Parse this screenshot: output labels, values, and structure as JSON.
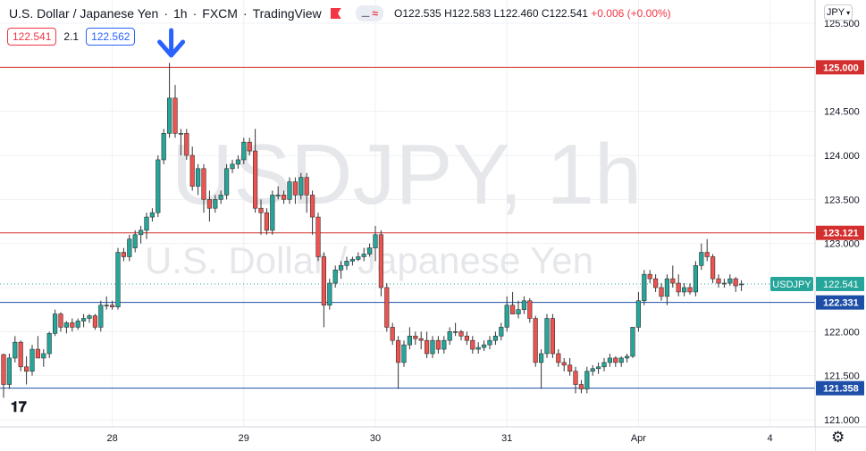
{
  "header": {
    "symbol_name": "U.S. Dollar / Japanese Yen",
    "interval": "1h",
    "exchange": "FXCM",
    "source": "TradingView",
    "ohlc": {
      "open": "O122.535",
      "high": "H122.583",
      "low": "L122.460",
      "close": "C122.541",
      "change": "+0.006 (+0.00%)"
    }
  },
  "trade": {
    "sell_price": "122.541",
    "spread": "2.1",
    "buy_price": "122.562"
  },
  "currency_selector": "JPY",
  "watermark": {
    "ticker": "USDJPY, 1h",
    "name": "U.S. Dollar / Japanese Yen"
  },
  "price_label": {
    "symbol": "USDJPY",
    "value": "122.541"
  },
  "colors": {
    "up": "#26a69a",
    "down": "#ef5350",
    "resistance": "#d32f2f",
    "support": "#1e4fa8",
    "arrow": "#2962ff",
    "background": "#ffffff",
    "grid": "#eef0f3"
  },
  "icons": {
    "arrow": "arrow-down-icon",
    "settings": "gear-icon",
    "logo": "tradingview-logo-icon",
    "flag": "flag-icon"
  },
  "chart_data": {
    "type": "candlestick",
    "title": "U.S. Dollar / Japanese Yen · 1h · FXCM",
    "y_axis": {
      "ticks": [
        "125.500",
        "125.000",
        "124.500",
        "124.000",
        "123.500",
        "123.000",
        "122.500",
        "122.000",
        "121.500",
        "121.000"
      ],
      "range": [
        121.0,
        125.5
      ],
      "position": "right"
    },
    "x_axis": {
      "ticks": [
        {
          "label": "28",
          "index": 19
        },
        {
          "label": "29",
          "index": 42
        },
        {
          "label": "30",
          "index": 65
        },
        {
          "label": "31",
          "index": 88
        },
        {
          "label": "Apr",
          "index": 111
        },
        {
          "label": "4",
          "index": 134
        }
      ],
      "range": [
        -1,
        148
      ]
    },
    "horizontal_lines": [
      {
        "value": 125.0,
        "label": "125.000",
        "kind": "resistance"
      },
      {
        "value": 123.121,
        "label": "123.121",
        "kind": "resistance"
      },
      {
        "value": 122.331,
        "label": "122.331",
        "kind": "support"
      },
      {
        "value": 121.358,
        "label": "121.358",
        "kind": "support"
      }
    ],
    "current_price": 122.541,
    "annotation": {
      "type": "arrow-down",
      "at_index": 29,
      "near_value": 125.1
    },
    "ohlc": [
      [
        121.74,
        121.75,
        121.25,
        121.4
      ],
      [
        121.4,
        121.75,
        121.35,
        121.7
      ],
      [
        121.7,
        121.95,
        121.65,
        121.88
      ],
      [
        121.88,
        121.9,
        121.55,
        121.6
      ],
      [
        121.6,
        121.72,
        121.4,
        121.55
      ],
      [
        121.55,
        121.85,
        121.5,
        121.8
      ],
      [
        121.8,
        121.95,
        121.7,
        121.7
      ],
      [
        121.7,
        121.8,
        121.6,
        121.75
      ],
      [
        121.75,
        122.0,
        121.7,
        121.98
      ],
      [
        121.98,
        122.25,
        121.95,
        122.2
      ],
      [
        122.2,
        122.22,
        122.0,
        122.05
      ],
      [
        122.05,
        122.12,
        121.98,
        122.1
      ],
      [
        122.1,
        122.15,
        122.0,
        122.05
      ],
      [
        122.05,
        122.15,
        122.02,
        122.12
      ],
      [
        122.12,
        122.2,
        122.05,
        122.15
      ],
      [
        122.15,
        122.2,
        122.1,
        122.18
      ],
      [
        122.18,
        122.2,
        122.02,
        122.05
      ],
      [
        122.05,
        122.35,
        122.0,
        122.3
      ],
      [
        122.3,
        122.4,
        122.25,
        122.3
      ],
      [
        122.3,
        122.35,
        122.25,
        122.28
      ],
      [
        122.28,
        122.95,
        122.25,
        122.9
      ],
      [
        122.9,
        122.95,
        122.8,
        122.85
      ],
      [
        122.85,
        123.1,
        122.8,
        123.05
      ],
      [
        122.95,
        123.15,
        122.9,
        123.1
      ],
      [
        123.1,
        123.2,
        123.0,
        123.15
      ],
      [
        123.15,
        123.35,
        123.05,
        123.3
      ],
      [
        123.3,
        123.4,
        123.25,
        123.35
      ],
      [
        123.35,
        124.0,
        123.3,
        123.95
      ],
      [
        123.95,
        124.3,
        123.9,
        124.25
      ],
      [
        124.25,
        125.05,
        124.2,
        124.65
      ],
      [
        124.65,
        124.8,
        124.2,
        124.25
      ],
      [
        124.25,
        124.3,
        124.0,
        124.25
      ],
      [
        124.25,
        124.3,
        123.95,
        124.0
      ],
      [
        124.0,
        124.1,
        123.6,
        123.65
      ],
      [
        123.65,
        123.9,
        123.55,
        123.85
      ],
      [
        123.85,
        123.9,
        123.35,
        123.5
      ],
      [
        123.5,
        123.6,
        123.25,
        123.4
      ],
      [
        123.4,
        123.55,
        123.35,
        123.5
      ],
      [
        123.5,
        123.6,
        123.45,
        123.55
      ],
      [
        123.55,
        123.9,
        123.5,
        123.85
      ],
      [
        123.85,
        123.95,
        123.8,
        123.9
      ],
      [
        123.9,
        124.0,
        123.85,
        123.95
      ],
      [
        123.95,
        124.2,
        123.9,
        124.15
      ],
      [
        124.15,
        124.2,
        124.0,
        124.05
      ],
      [
        124.05,
        124.3,
        123.35,
        123.4
      ],
      [
        123.4,
        123.5,
        123.1,
        123.35
      ],
      [
        123.35,
        123.4,
        123.1,
        123.15
      ],
      [
        123.15,
        123.6,
        123.1,
        123.55
      ],
      [
        123.55,
        123.65,
        123.5,
        123.55
      ],
      [
        123.55,
        123.6,
        123.45,
        123.5
      ],
      [
        123.5,
        123.75,
        123.45,
        123.7
      ],
      [
        123.7,
        123.75,
        123.45,
        123.55
      ],
      [
        123.55,
        123.8,
        123.5,
        123.75
      ],
      [
        123.75,
        123.8,
        123.35,
        123.55
      ],
      [
        123.55,
        123.6,
        123.1,
        123.3
      ],
      [
        123.3,
        123.35,
        122.8,
        122.85
      ],
      [
        122.85,
        122.9,
        122.05,
        122.3
      ],
      [
        122.3,
        122.6,
        122.25,
        122.55
      ],
      [
        122.55,
        122.75,
        122.5,
        122.7
      ],
      [
        122.7,
        122.8,
        122.6,
        122.75
      ],
      [
        122.75,
        122.85,
        122.7,
        122.8
      ],
      [
        122.8,
        122.85,
        122.75,
        122.82
      ],
      [
        122.82,
        122.9,
        122.8,
        122.85
      ],
      [
        122.85,
        122.95,
        122.8,
        122.88
      ],
      [
        122.88,
        123.0,
        122.85,
        122.95
      ],
      [
        122.95,
        123.2,
        122.8,
        123.1
      ],
      [
        123.1,
        123.15,
        122.4,
        122.5
      ],
      [
        122.5,
        122.55,
        122.0,
        122.05
      ],
      [
        122.05,
        122.1,
        121.85,
        121.9
      ],
      [
        121.9,
        121.95,
        121.35,
        121.65
      ],
      [
        121.65,
        121.9,
        121.6,
        121.85
      ],
      [
        121.85,
        122.05,
        121.8,
        121.95
      ],
      [
        121.95,
        122.0,
        121.85,
        121.92
      ],
      [
        121.92,
        122.0,
        121.8,
        121.9
      ],
      [
        121.9,
        122.0,
        121.7,
        121.75
      ],
      [
        121.75,
        121.95,
        121.7,
        121.9
      ],
      [
        121.9,
        121.95,
        121.75,
        121.8
      ],
      [
        121.8,
        121.95,
        121.75,
        121.9
      ],
      [
        121.9,
        122.05,
        121.85,
        122.0
      ],
      [
        122.0,
        122.1,
        121.95,
        122.0
      ],
      [
        122.0,
        122.02,
        121.9,
        121.95
      ],
      [
        121.95,
        122.0,
        121.85,
        121.9
      ],
      [
        121.9,
        121.95,
        121.75,
        121.8
      ],
      [
        121.8,
        121.88,
        121.75,
        121.82
      ],
      [
        121.82,
        121.9,
        121.78,
        121.85
      ],
      [
        121.85,
        121.95,
        121.8,
        121.9
      ],
      [
        121.9,
        122.0,
        121.85,
        121.95
      ],
      [
        121.95,
        122.1,
        121.9,
        122.05
      ],
      [
        122.05,
        122.4,
        122.0,
        122.3
      ],
      [
        122.3,
        122.45,
        122.2,
        122.2
      ],
      [
        122.2,
        122.35,
        122.15,
        122.25
      ],
      [
        122.25,
        122.4,
        122.2,
        122.35
      ],
      [
        122.35,
        122.38,
        122.1,
        122.15
      ],
      [
        122.15,
        122.18,
        121.6,
        121.65
      ],
      [
        121.65,
        121.8,
        121.35,
        121.75
      ],
      [
        121.75,
        122.2,
        121.7,
        122.15
      ],
      [
        122.15,
        122.2,
        121.7,
        121.75
      ],
      [
        121.75,
        121.8,
        121.6,
        121.65
      ],
      [
        121.65,
        121.7,
        121.55,
        121.62
      ],
      [
        121.62,
        121.7,
        121.5,
        121.55
      ],
      [
        121.55,
        121.6,
        121.3,
        121.4
      ],
      [
        121.4,
        121.45,
        121.3,
        121.35
      ],
      [
        121.35,
        121.6,
        121.3,
        121.55
      ],
      [
        121.55,
        121.62,
        121.5,
        121.58
      ],
      [
        121.58,
        121.65,
        121.52,
        121.6
      ],
      [
        121.6,
        121.7,
        121.55,
        121.65
      ],
      [
        121.65,
        121.75,
        121.6,
        121.7
      ],
      [
        121.7,
        121.72,
        121.6,
        121.65
      ],
      [
        121.65,
        121.72,
        121.6,
        121.7
      ],
      [
        121.7,
        121.75,
        121.65,
        121.72
      ],
      [
        121.72,
        122.05,
        121.7,
        122.05
      ],
      [
        122.05,
        122.45,
        122.0,
        122.35
      ],
      [
        122.35,
        122.7,
        122.3,
        122.65
      ],
      [
        122.65,
        122.7,
        122.55,
        122.6
      ],
      [
        122.6,
        122.65,
        122.45,
        122.5
      ],
      [
        122.5,
        122.55,
        122.35,
        122.4
      ],
      [
        122.4,
        122.65,
        122.3,
        122.6
      ],
      [
        122.6,
        122.75,
        122.5,
        122.55
      ],
      [
        122.55,
        122.65,
        122.4,
        122.45
      ],
      [
        122.45,
        122.55,
        122.4,
        122.5
      ],
      [
        122.5,
        122.55,
        122.42,
        122.45
      ],
      [
        122.45,
        122.8,
        122.4,
        122.75
      ],
      [
        122.75,
        123.0,
        122.7,
        122.9
      ],
      [
        122.9,
        123.05,
        122.8,
        122.85
      ],
      [
        122.85,
        122.88,
        122.55,
        122.6
      ],
      [
        122.6,
        122.65,
        122.5,
        122.55
      ],
      [
        122.55,
        122.6,
        122.5,
        122.55
      ],
      [
        122.55,
        122.65,
        122.52,
        122.6
      ],
      [
        122.6,
        122.62,
        122.45,
        122.52
      ],
      [
        122.535,
        122.583,
        122.46,
        122.541
      ]
    ]
  }
}
